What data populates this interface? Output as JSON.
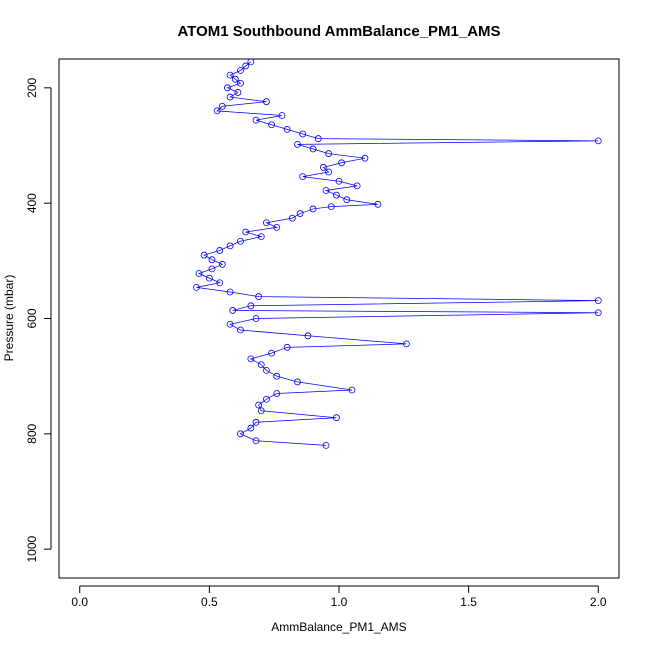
{
  "chart_data": {
    "type": "line",
    "title": "ATOM1 Southbound AmmBalance_PM1_AMS",
    "xlabel": "AmmBalance_PM1_AMS",
    "ylabel": "Pressure (mbar)",
    "xlim": [
      -0.08,
      2.08
    ],
    "ylim": [
      1050,
      150
    ],
    "x_ticks": [
      0.0,
      0.5,
      1.0,
      1.5,
      2.0
    ],
    "x_tick_labels": [
      "0.0",
      "0.5",
      "1.0",
      "1.5",
      "2.0"
    ],
    "y_ticks": [
      200,
      400,
      600,
      800,
      1000
    ],
    "y_tick_labels": [
      "200",
      "400",
      "600",
      "800",
      "1000"
    ],
    "grid": false,
    "legend": "none",
    "series": [
      {
        "color": "#0000ff",
        "line": true,
        "marker": "open-circle",
        "y": [
          155,
          162,
          170,
          178,
          185,
          192,
          200,
          208,
          216,
          224,
          232,
          240,
          248,
          256,
          264,
          272,
          280,
          288,
          292,
          298,
          306,
          314,
          322,
          330,
          338,
          346,
          354,
          362,
          370,
          378,
          386,
          394,
          402,
          406,
          410,
          418,
          426,
          434,
          442,
          450,
          458,
          466,
          474,
          482,
          490,
          498,
          506,
          514,
          522,
          530,
          538,
          546,
          554,
          562,
          569,
          578,
          586,
          590,
          600,
          610,
          620,
          630,
          644,
          650,
          660,
          670,
          680,
          690,
          700,
          710,
          724,
          730,
          740,
          750,
          760,
          772,
          780,
          790,
          800,
          812,
          820
        ],
        "x": [
          0.66,
          0.64,
          0.62,
          0.58,
          0.6,
          0.62,
          0.57,
          0.61,
          0.58,
          0.72,
          0.55,
          0.53,
          0.78,
          0.68,
          0.74,
          0.8,
          0.86,
          0.92,
          2.0,
          0.84,
          0.9,
          0.96,
          1.1,
          1.01,
          0.94,
          0.96,
          0.86,
          1.0,
          1.07,
          0.95,
          0.99,
          1.03,
          1.15,
          0.97,
          0.9,
          0.85,
          0.82,
          0.72,
          0.76,
          0.64,
          0.7,
          0.62,
          0.58,
          0.54,
          0.48,
          0.51,
          0.55,
          0.51,
          0.46,
          0.5,
          0.54,
          0.45,
          0.58,
          0.69,
          2.0,
          0.66,
          0.59,
          2.0,
          0.68,
          0.58,
          0.62,
          0.88,
          1.26,
          0.8,
          0.74,
          0.66,
          0.7,
          0.72,
          0.76,
          0.84,
          1.05,
          0.76,
          0.72,
          0.69,
          0.7,
          0.99,
          0.68,
          0.66,
          0.62,
          0.68,
          0.95
        ]
      }
    ]
  }
}
